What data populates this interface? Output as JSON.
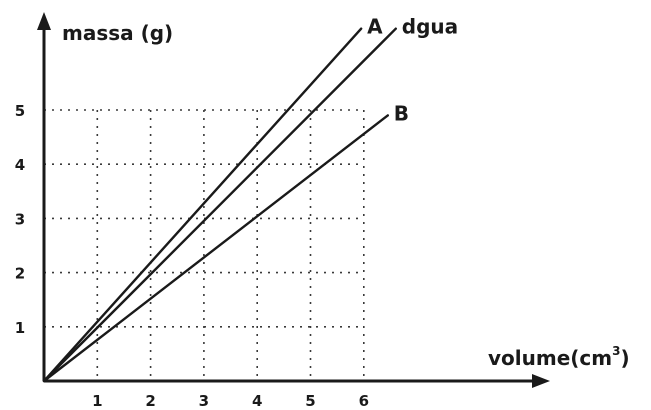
{
  "chart_data": {
    "type": "line",
    "title": "",
    "ylabel": "massa (g)",
    "xlabel": "volume(cm",
    "xlabel_sup": "3",
    "xlabel_close": ")",
    "x_ticks": [
      "1",
      "2",
      "3",
      "4",
      "5",
      "6"
    ],
    "y_ticks": [
      "1",
      "2",
      "3",
      "4",
      "5"
    ],
    "xlim": [
      0,
      7.5
    ],
    "ylim": [
      0,
      6.3
    ],
    "grid": true,
    "series": [
      {
        "name": "A",
        "x": [
          0,
          5.95
        ],
        "y": [
          0,
          6.5
        ]
      },
      {
        "name": "dgua",
        "x": [
          0,
          6.6
        ],
        "y": [
          0,
          6.5
        ]
      },
      {
        "name": "B",
        "x": [
          0,
          6.45
        ],
        "y": [
          0,
          4.9
        ]
      }
    ]
  }
}
